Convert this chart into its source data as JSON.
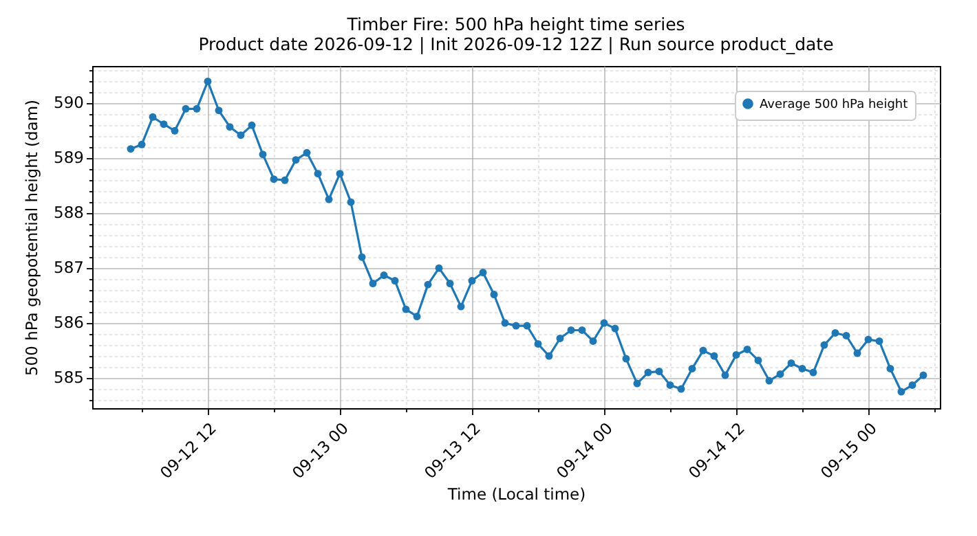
{
  "chart_data": {
    "type": "line",
    "title": "Timber Fire: 500 hPa height time series",
    "subtitle": "Product date 2026-09-12 | Init 2026-09-12 12Z | Run source product_date",
    "xlabel": "Time (Local time)",
    "ylabel": "500 hPa geopotential height (dam)",
    "x": [
      "2026-09-12T05:00",
      "2026-09-12T06:00",
      "2026-09-12T07:00",
      "2026-09-12T08:00",
      "2026-09-12T09:00",
      "2026-09-12T10:00",
      "2026-09-12T11:00",
      "2026-09-12T12:00",
      "2026-09-12T13:00",
      "2026-09-12T14:00",
      "2026-09-12T15:00",
      "2026-09-12T16:00",
      "2026-09-12T17:00",
      "2026-09-12T18:00",
      "2026-09-12T19:00",
      "2026-09-12T20:00",
      "2026-09-12T21:00",
      "2026-09-12T22:00",
      "2026-09-12T23:00",
      "2026-09-13T00:00",
      "2026-09-13T01:00",
      "2026-09-13T02:00",
      "2026-09-13T03:00",
      "2026-09-13T04:00",
      "2026-09-13T05:00",
      "2026-09-13T06:00",
      "2026-09-13T07:00",
      "2026-09-13T08:00",
      "2026-09-13T09:00",
      "2026-09-13T10:00",
      "2026-09-13T11:00",
      "2026-09-13T12:00",
      "2026-09-13T13:00",
      "2026-09-13T14:00",
      "2026-09-13T15:00",
      "2026-09-13T16:00",
      "2026-09-13T17:00",
      "2026-09-13T18:00",
      "2026-09-13T19:00",
      "2026-09-13T20:00",
      "2026-09-13T21:00",
      "2026-09-13T22:00",
      "2026-09-13T23:00",
      "2026-09-14T00:00",
      "2026-09-14T01:00",
      "2026-09-14T02:00",
      "2026-09-14T03:00",
      "2026-09-14T04:00",
      "2026-09-14T05:00",
      "2026-09-14T06:00",
      "2026-09-14T07:00",
      "2026-09-14T08:00",
      "2026-09-14T09:00",
      "2026-09-14T10:00",
      "2026-09-14T11:00",
      "2026-09-14T12:00",
      "2026-09-14T13:00",
      "2026-09-14T14:00",
      "2026-09-14T15:00",
      "2026-09-14T16:00",
      "2026-09-14T17:00",
      "2026-09-14T18:00",
      "2026-09-14T19:00",
      "2026-09-14T20:00",
      "2026-09-14T21:00",
      "2026-09-14T22:00",
      "2026-09-14T23:00",
      "2026-09-15T00:00",
      "2026-09-15T01:00",
      "2026-09-15T02:00",
      "2026-09-15T03:00",
      "2026-09-15T04:00",
      "2026-09-15T05:00"
    ],
    "series": [
      {
        "name": "Average 500 hPa height",
        "color": "#1f77b4",
        "values": [
          589.17,
          589.25,
          589.75,
          589.62,
          589.5,
          589.9,
          589.9,
          590.4,
          589.87,
          589.57,
          589.42,
          589.6,
          589.07,
          588.62,
          588.6,
          588.97,
          589.1,
          588.72,
          588.25,
          588.72,
          588.2,
          587.2,
          586.72,
          586.87,
          586.77,
          586.25,
          586.12,
          586.7,
          587.0,
          586.72,
          586.3,
          586.77,
          586.92,
          586.52,
          586.0,
          585.95,
          585.95,
          585.62,
          585.4,
          585.72,
          585.87,
          585.87,
          585.67,
          586.0,
          585.9,
          585.35,
          584.9,
          585.1,
          585.12,
          584.87,
          584.8,
          585.17,
          585.5,
          585.4,
          585.05,
          585.42,
          585.52,
          585.32,
          584.95,
          585.07,
          585.27,
          585.17,
          585.1,
          585.6,
          585.82,
          585.77,
          585.45,
          585.7,
          585.67,
          585.17,
          584.75,
          584.87,
          585.05
        ]
      }
    ],
    "xlim": [
      "2026-09-12T01:30",
      "2026-09-15T06:30"
    ],
    "xticks": [
      {
        "value": "2026-09-12T06:00",
        "label": null
      },
      {
        "value": "2026-09-12T12:00",
        "label": "09-12 12"
      },
      {
        "value": "2026-09-12T18:00",
        "label": null
      },
      {
        "value": "2026-09-13T00:00",
        "label": "09-13 00"
      },
      {
        "value": "2026-09-13T06:00",
        "label": null
      },
      {
        "value": "2026-09-13T12:00",
        "label": "09-13 12"
      },
      {
        "value": "2026-09-13T18:00",
        "label": null
      },
      {
        "value": "2026-09-14T00:00",
        "label": "09-14 00"
      },
      {
        "value": "2026-09-14T06:00",
        "label": null
      },
      {
        "value": "2026-09-14T12:00",
        "label": "09-14 12"
      },
      {
        "value": "2026-09-14T18:00",
        "label": null
      },
      {
        "value": "2026-09-15T00:00",
        "label": "09-15 00"
      },
      {
        "value": "2026-09-15T06:00",
        "label": null
      }
    ],
    "ylim": [
      584.45,
      590.68
    ],
    "yticks": [
      {
        "value": 584.6,
        "label": null
      },
      {
        "value": 584.8,
        "label": null
      },
      585,
      {
        "value": 585.2,
        "label": null
      },
      {
        "value": 585.4,
        "label": null
      },
      {
        "value": 585.6,
        "label": null
      },
      {
        "value": 585.8,
        "label": null
      },
      586,
      {
        "value": 586.2,
        "label": null
      },
      {
        "value": 586.4,
        "label": null
      },
      {
        "value": 586.6,
        "label": null
      },
      {
        "value": 586.8,
        "label": null
      },
      587,
      {
        "value": 587.2,
        "label": null
      },
      {
        "value": 587.4,
        "label": null
      },
      {
        "value": 587.6,
        "label": null
      },
      {
        "value": 587.8,
        "label": null
      },
      588,
      {
        "value": 588.2,
        "label": null
      },
      {
        "value": 588.4,
        "label": null
      },
      {
        "value": 588.6,
        "label": null
      },
      {
        "value": 588.8,
        "label": null
      },
      589,
      {
        "value": 589.2,
        "label": null
      },
      {
        "value": 589.4,
        "label": null
      },
      {
        "value": 589.6,
        "label": null
      },
      {
        "value": 589.8,
        "label": null
      },
      590,
      {
        "value": 590.2,
        "label": null
      },
      {
        "value": 590.4,
        "label": null
      },
      {
        "value": 590.6,
        "label": null
      }
    ],
    "grid": true,
    "legend": "top right",
    "marker": "circle",
    "line_style": "solid"
  }
}
